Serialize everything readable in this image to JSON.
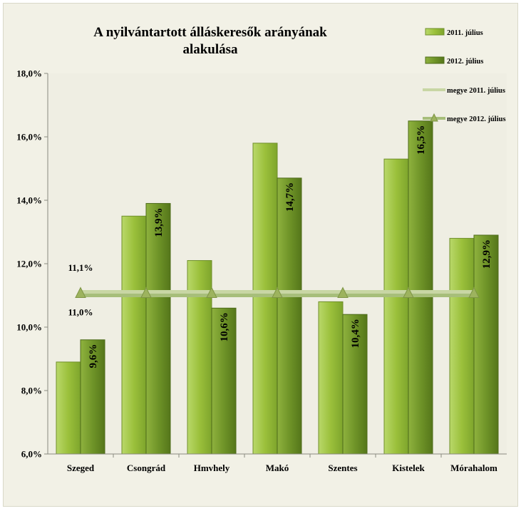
{
  "chart_data": {
    "type": "bar",
    "title_lines": [
      "A nyilvántartott álláskeresők arányának",
      "alakulása"
    ],
    "categories": [
      "Szeged",
      "Csongrád",
      "Hmvhely",
      "Makó",
      "Szentes",
      "Kistelek",
      "Mórahalom"
    ],
    "series": [
      {
        "name": "2011. július",
        "values": [
          8.9,
          13.5,
          12.1,
          15.8,
          10.8,
          15.3,
          12.8
        ]
      },
      {
        "name": "2012. július",
        "values": [
          9.6,
          13.9,
          10.6,
          14.7,
          10.4,
          16.5,
          12.9
        ],
        "data_labels": [
          "9,6%",
          "13,9%",
          "10,6%",
          "14,7%",
          "10,4%",
          "16,5%",
          "12,9%"
        ]
      }
    ],
    "reference_lines": [
      {
        "name": "megye 2011. július",
        "value": 11.1,
        "label": "11,1%"
      },
      {
        "name": "megye 2012. július",
        "value": 11.0,
        "label": "11,0%"
      }
    ],
    "ylim": [
      6,
      18
    ],
    "yticks": [
      6,
      8,
      10,
      12,
      14,
      16,
      18
    ],
    "ytick_labels": [
      "6,0%",
      "8,0%",
      "10,0%",
      "12,0%",
      "14,0%",
      "16,0%",
      "18,0%"
    ],
    "legend_position": "top-right",
    "colors": {
      "series_2011": "#9bc03b",
      "series_2012": "#6f9428",
      "megye_2011": "#c8d6a4",
      "megye_2012": "#a7be7a",
      "plot_bg": "#efeee3"
    }
  }
}
